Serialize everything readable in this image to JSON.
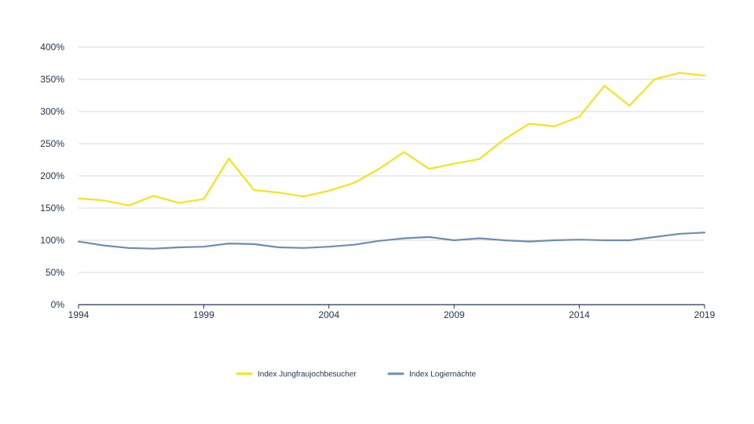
{
  "chart_data": {
    "type": "line",
    "title": "",
    "xlabel": "",
    "ylabel": "",
    "x": [
      1994,
      1995,
      1996,
      1997,
      1998,
      1999,
      2000,
      2001,
      2002,
      2003,
      2004,
      2005,
      2006,
      2007,
      2008,
      2009,
      2010,
      2011,
      2012,
      2013,
      2014,
      2015,
      2016,
      2017,
      2018,
      2019
    ],
    "xlim": [
      1994,
      2019
    ],
    "x_ticks": [
      1994,
      1999,
      2004,
      2009,
      2014,
      2019
    ],
    "x_tick_labels": [
      "1994",
      "1999",
      "2004",
      "2009",
      "2014",
      "2019"
    ],
    "ylim": [
      0,
      400
    ],
    "y_ticks": [
      0,
      50,
      100,
      150,
      200,
      250,
      300,
      350,
      400
    ],
    "y_tick_labels": [
      "0%",
      "50%",
      "100%",
      "150%",
      "200%",
      "250%",
      "300%",
      "350%",
      "400%"
    ],
    "grid": true,
    "legend_position": "bottom",
    "series": [
      {
        "name": "Index Jungfraujochbesucher",
        "color": "#f5e31c",
        "values": [
          165,
          162,
          154,
          169,
          158,
          164,
          227,
          178,
          174,
          168,
          177,
          189,
          211,
          237,
          211,
          219,
          226,
          257,
          281,
          277,
          292,
          340,
          309,
          350,
          360,
          356
        ]
      },
      {
        "name": "Index Logiernächte",
        "color": "#6d8db5",
        "values": [
          98,
          92,
          88,
          87,
          89,
          90,
          95,
          94,
          89,
          88,
          90,
          93,
          99,
          103,
          105,
          100,
          103,
          100,
          98,
          100,
          101,
          100,
          100,
          105,
          110,
          112
        ]
      }
    ]
  }
}
